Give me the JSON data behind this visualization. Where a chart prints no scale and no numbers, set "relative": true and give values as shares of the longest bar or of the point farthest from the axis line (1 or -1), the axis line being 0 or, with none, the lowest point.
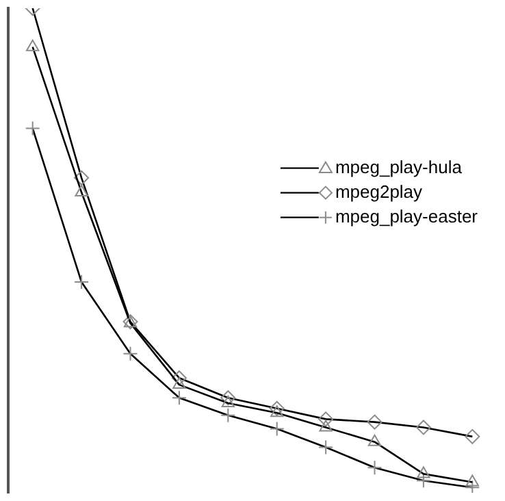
{
  "chart_data": {
    "type": "line",
    "relative": true,
    "categories": [
      null,
      null,
      null,
      null,
      null,
      null,
      null,
      null,
      null,
      null
    ],
    "legend": "right",
    "grid": false,
    "series": [
      {
        "name": "mpeg_play-hula",
        "color": "#000000",
        "marker": "triangle",
        "values": [
          0.92,
          0.62,
          0.35,
          0.223,
          0.185,
          0.165,
          0.135,
          0.105,
          0.039,
          0.022
        ]
      },
      {
        "name": "mpeg2play",
        "color": "#000000",
        "marker": "diamond",
        "values": [
          1.0,
          0.65,
          0.353,
          0.237,
          0.196,
          0.174,
          0.152,
          0.146,
          0.135,
          0.116
        ]
      },
      {
        "name": "mpeg_play-easter",
        "color": "#000000",
        "marker": "cross",
        "values": [
          0.752,
          0.435,
          0.287,
          0.196,
          0.16,
          0.132,
          0.094,
          0.052,
          0.025,
          0.011
        ]
      }
    ]
  }
}
